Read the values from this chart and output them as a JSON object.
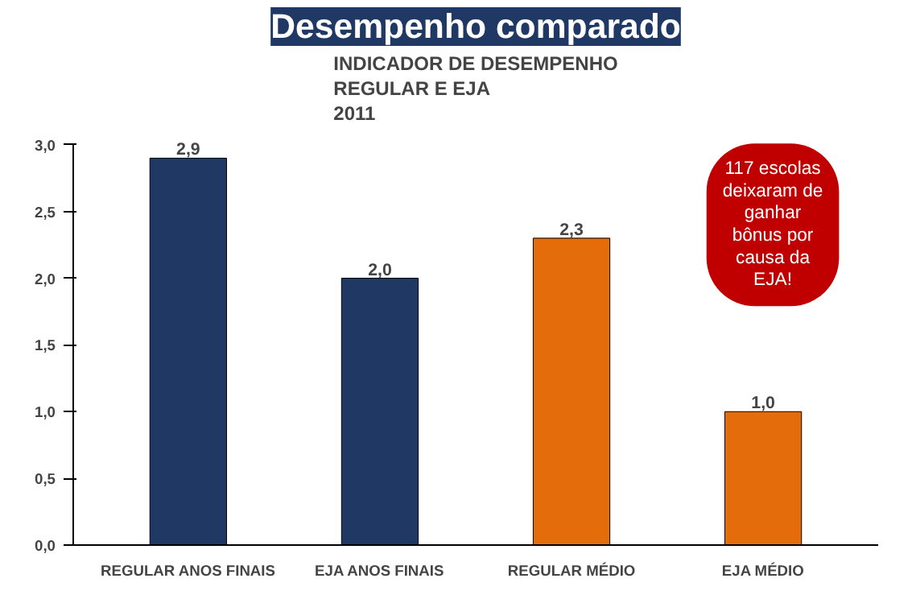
{
  "chart_data": {
    "type": "bar",
    "title": "Desempenho comparado",
    "subtitle": "INDICADOR DE DESEMPENHO\nREGULAR E EJA\n2011",
    "categories": [
      "REGULAR ANOS FINAIS",
      "EJA ANOS FINAIS",
      "REGULAR MÉDIO",
      "EJA MÉDIO"
    ],
    "values": [
      2.9,
      2.0,
      2.3,
      1.0
    ],
    "colors": [
      "#1f3864",
      "#1f3864",
      "#e46c0a",
      "#e46c0a"
    ],
    "value_labels": [
      "2,9",
      "2,0",
      "2,3",
      "1,0"
    ],
    "ylim": [
      0,
      3
    ],
    "yticks": [
      {
        "value": 0,
        "label": "0,0"
      },
      {
        "value": 0.5,
        "label": "0,5"
      },
      {
        "value": 1,
        "label": "1,0"
      },
      {
        "value": 1.5,
        "label": "1,5"
      },
      {
        "value": 2,
        "label": "2,0"
      },
      {
        "value": 2.5,
        "label": "2,5"
      },
      {
        "value": 3,
        "label": "3,0"
      }
    ],
    "grid": false,
    "legend": false,
    "annotations": [
      "117 escolas\ndeixaram de\nganhar\nbônus por\ncausa da\nEJA!"
    ]
  }
}
